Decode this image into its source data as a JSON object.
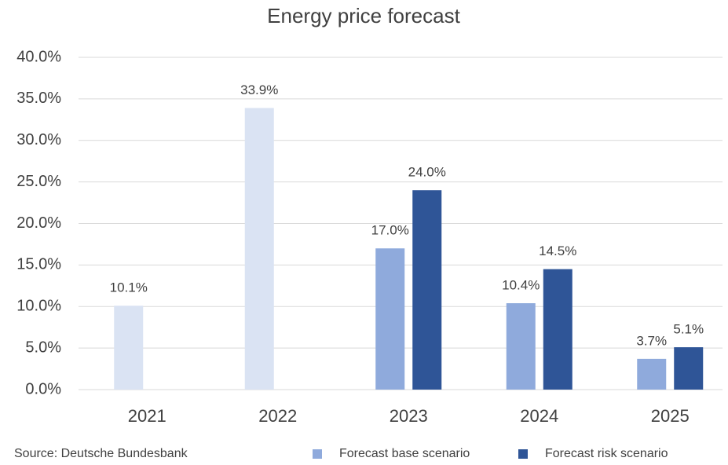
{
  "chart_data": {
    "type": "bar",
    "title": "Energy price forecast",
    "categories": [
      "2021",
      "2022",
      "2023",
      "2024",
      "2025"
    ],
    "series": [
      {
        "name": "Forecast base scenario",
        "color": "#8faadc",
        "point_colors": [
          "#dae3f3",
          "#dae3f3",
          "#8faadc",
          "#8faadc",
          "#8faadc"
        ],
        "values": [
          10.1,
          33.9,
          17.0,
          10.4,
          3.7
        ],
        "value_labels": [
          "10.1%",
          "33.9%",
          "17.0%",
          "10.4%",
          "3.7%"
        ]
      },
      {
        "name": "Forecast risk scenario",
        "color": "#2f5597",
        "values": [
          null,
          null,
          24.0,
          14.5,
          5.1
        ],
        "value_labels": [
          null,
          null,
          "24.0%",
          "14.5%",
          "5.1%"
        ]
      }
    ],
    "ylim": [
      0,
      40
    ],
    "yticks": [
      {
        "value": 0,
        "label": "0.0%"
      },
      {
        "value": 5,
        "label": "5.0%"
      },
      {
        "value": 10,
        "label": "10.0%"
      },
      {
        "value": 15,
        "label": "15.0%"
      },
      {
        "value": 20,
        "label": "20.0%"
      },
      {
        "value": 25,
        "label": "25.0%"
      },
      {
        "value": 30,
        "label": "30.0%"
      },
      {
        "value": 35,
        "label": "35.0%"
      },
      {
        "value": 40,
        "label": "40.0%"
      }
    ],
    "grid": true,
    "source": "Source: Deutsche Bundesbank"
  }
}
